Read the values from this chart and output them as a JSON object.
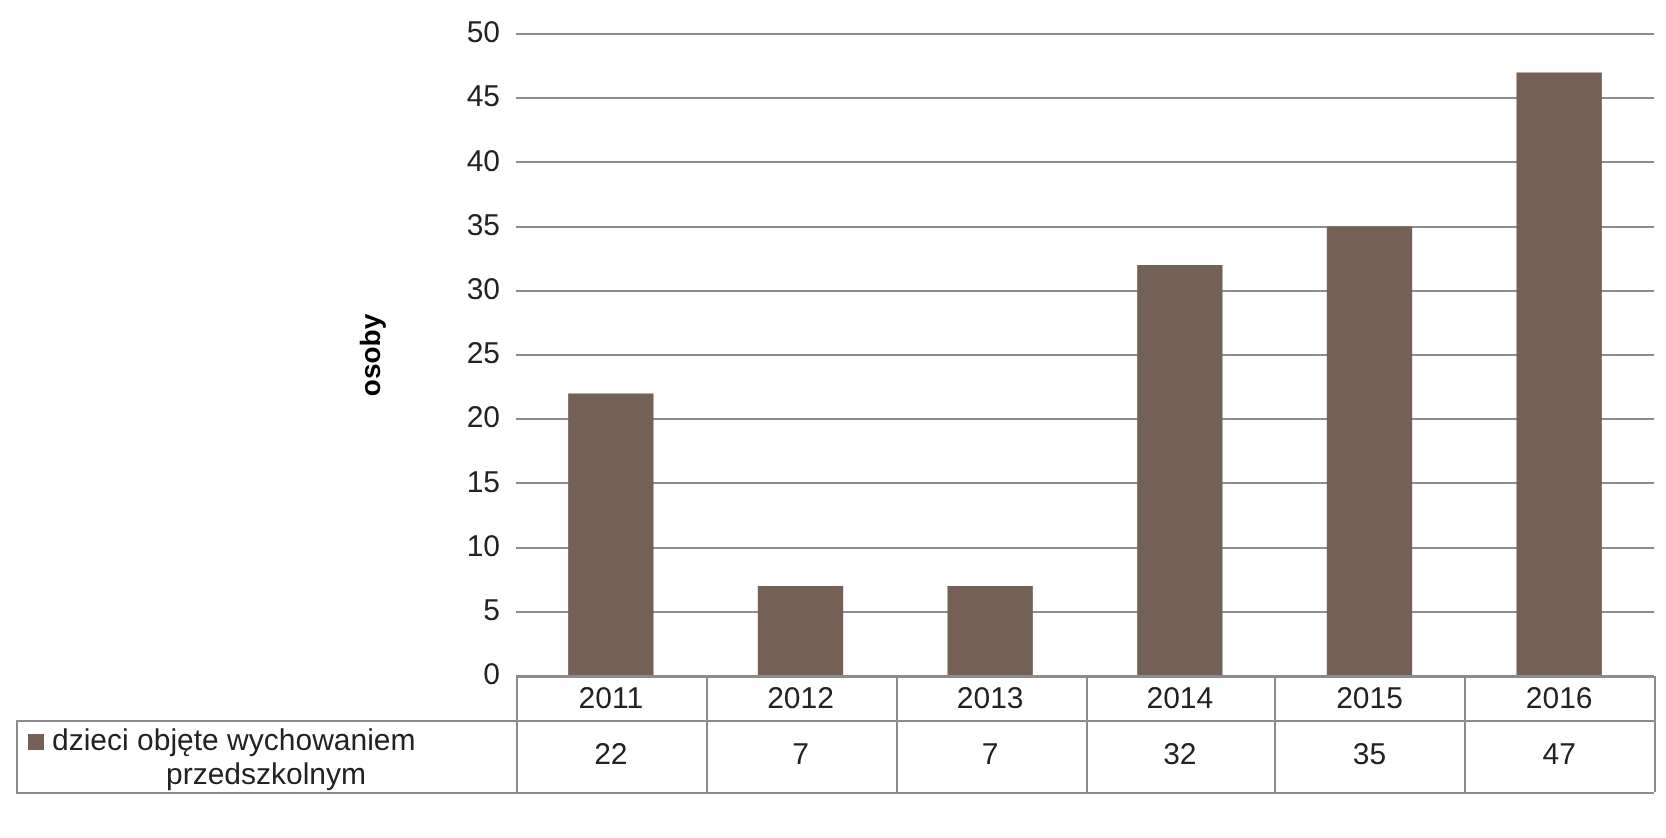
{
  "chart_data": {
    "type": "bar",
    "ylabel": "osoby",
    "categories": [
      "2011",
      "2012",
      "2013",
      "2014",
      "2015",
      "2016"
    ],
    "series": [
      {
        "name": "dzieci objęte wychowaniem przedszkolnym",
        "color": "#746055",
        "values": [
          22,
          7,
          7,
          32,
          35,
          47
        ]
      }
    ],
    "ylim": [
      0,
      50
    ],
    "yticks": [
      0,
      5,
      10,
      15,
      20,
      25,
      30,
      35,
      40,
      45,
      50
    ],
    "grid": "y",
    "legend": "bottom",
    "data_labels": true
  }
}
